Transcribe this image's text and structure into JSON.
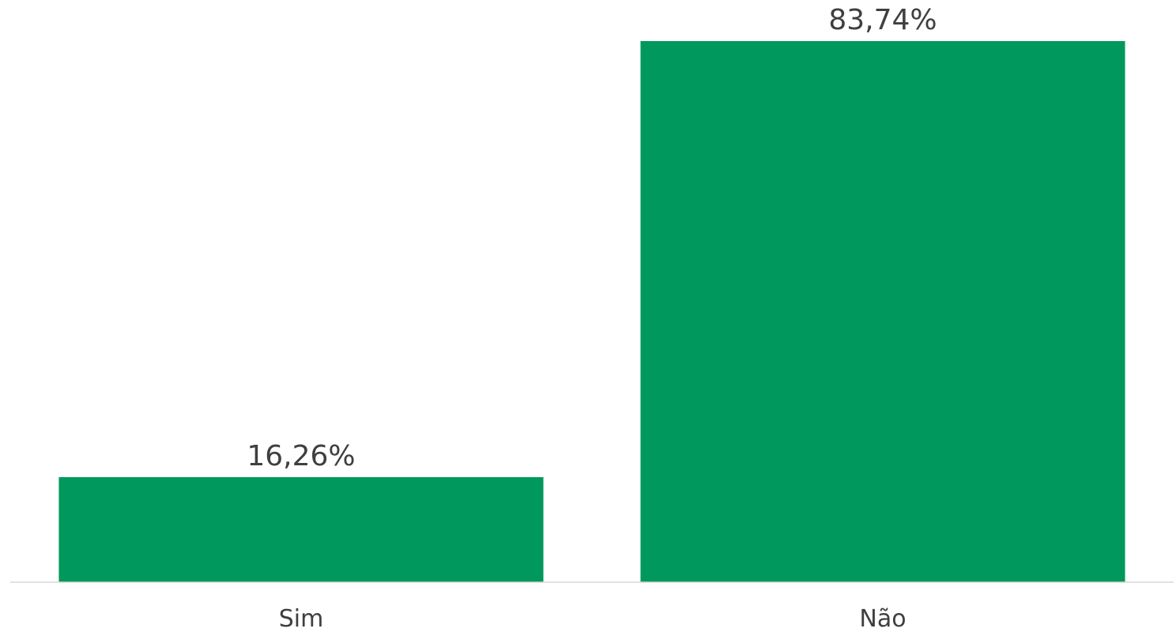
{
  "chart_data": {
    "type": "bar",
    "title": "",
    "xlabel": "",
    "ylabel": "",
    "categories": [
      "Sim",
      "Não"
    ],
    "values": [
      16.26,
      83.74
    ],
    "data_labels": [
      "16,26%",
      "83,74%"
    ],
    "ylim": [
      0,
      83.74
    ],
    "grid": false,
    "legend": "none",
    "colors": {
      "bar": "#00985c",
      "text": "#3f3f3f",
      "axis": "#d9d9d9"
    }
  }
}
